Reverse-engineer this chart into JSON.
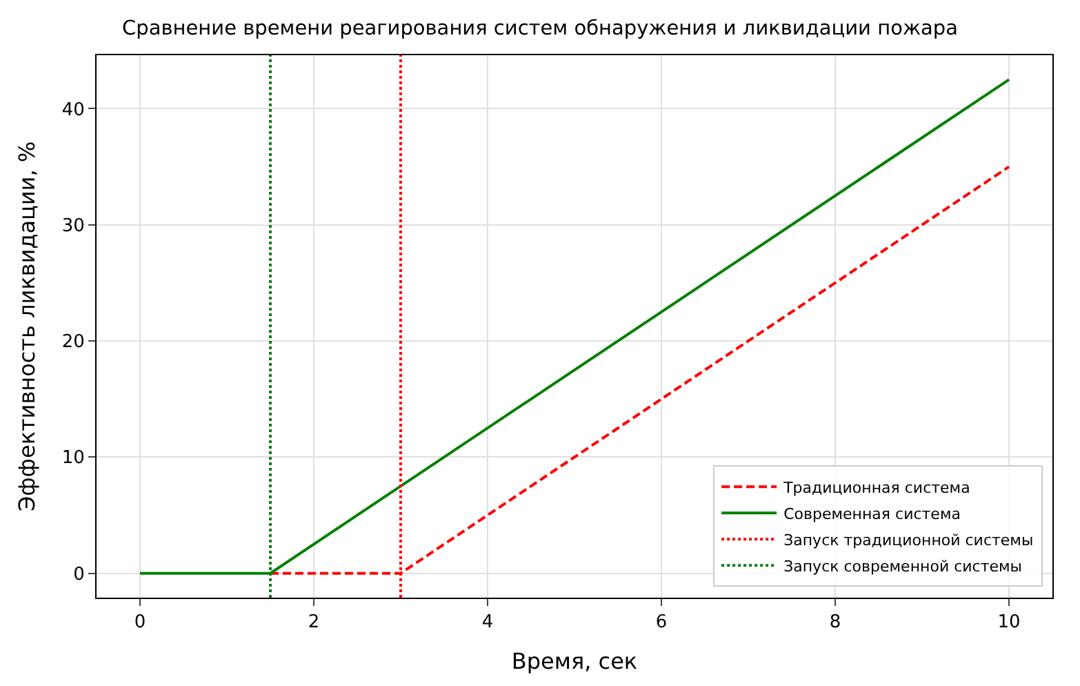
{
  "chart_data": {
    "type": "line",
    "title": "Сравнение времени реагирования систем обнаружения и ликвидации пожара",
    "xlabel": "Время, сек",
    "ylabel": "Эффективность ликвидации, %",
    "series": [
      {
        "name": "Традиционная система",
        "color": "#ff0000",
        "line_style": "dashed",
        "x": [
          1.5,
          3,
          10
        ],
        "values": [
          0,
          0,
          35
        ]
      },
      {
        "name": "Современная система",
        "color": "#008000",
        "line_style": "solid",
        "x": [
          0,
          1.5,
          10
        ],
        "values": [
          0,
          0,
          42.5
        ]
      },
      {
        "name": "Запуск традиционной системы",
        "color": "#ff0000",
        "line_style": "dotted",
        "x": [
          3,
          3
        ],
        "values": [
          -2.1,
          44.6
        ]
      },
      {
        "name": "Запуск современной системы",
        "color": "#008000",
        "line_style": "dotted",
        "x": [
          1.5,
          1.5
        ],
        "values": [
          -2.1,
          44.6
        ]
      }
    ],
    "xlim": [
      -0.5,
      10.5
    ],
    "ylim": [
      -2.1,
      44.6
    ],
    "xticks": [
      0,
      2,
      4,
      6,
      8,
      10
    ],
    "yticks": [
      0,
      10,
      20,
      30,
      40
    ],
    "grid": true,
    "legend": "bottom right",
    "marker": "none"
  }
}
